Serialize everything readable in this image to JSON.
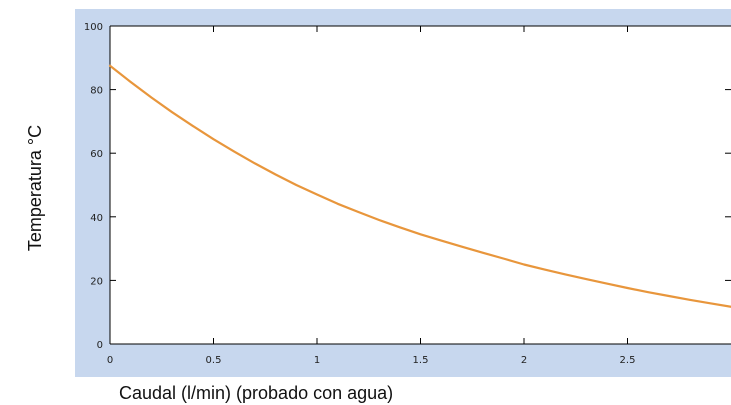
{
  "chart_data": {
    "type": "line",
    "title": "",
    "xlabel": "Caudal (l/min) (probado con agua)",
    "ylabel": "Temperatura °C",
    "xlim": [
      0,
      3
    ],
    "ylim": [
      0,
      100
    ],
    "x_ticks": [
      0,
      0.5,
      1,
      1.5,
      2,
      2.5
    ],
    "x_tick_labels": [
      "0",
      "0.5",
      "1",
      "1.5",
      "2",
      "2.5"
    ],
    "y_ticks": [
      0,
      20,
      40,
      60,
      80,
      100
    ],
    "y_tick_labels": [
      "0",
      "20",
      "40",
      "60",
      "80",
      "100"
    ],
    "grid": false,
    "legend": "none",
    "series": [
      {
        "color": "#E8963C",
        "x": [
          0,
          0.1,
          0.2,
          0.3,
          0.4,
          0.5,
          0.6,
          0.7,
          0.8,
          0.9,
          1.0,
          1.1,
          1.2,
          1.3,
          1.4,
          1.5,
          1.6,
          1.7,
          1.8,
          1.9,
          2.0,
          2.1,
          2.2,
          2.3,
          2.4,
          2.5,
          2.6,
          2.7,
          2.8,
          2.9,
          3.0
        ],
        "y": [
          87.5,
          82.4,
          77.5,
          72.9,
          68.6,
          64.4,
          60.5,
          56.8,
          53.3,
          50.0,
          47.0,
          44.1,
          41.5,
          39.0,
          36.7,
          34.5,
          32.5,
          30.6,
          28.7,
          26.9,
          25.0,
          23.4,
          21.9,
          20.4,
          19.0,
          17.6,
          16.3,
          15.1,
          13.9,
          12.8,
          11.7
        ]
      }
    ],
    "colors": {
      "panel_background": "#C7D7EE",
      "plot_background": "#FFFFFF",
      "axis": "#000000"
    }
  }
}
